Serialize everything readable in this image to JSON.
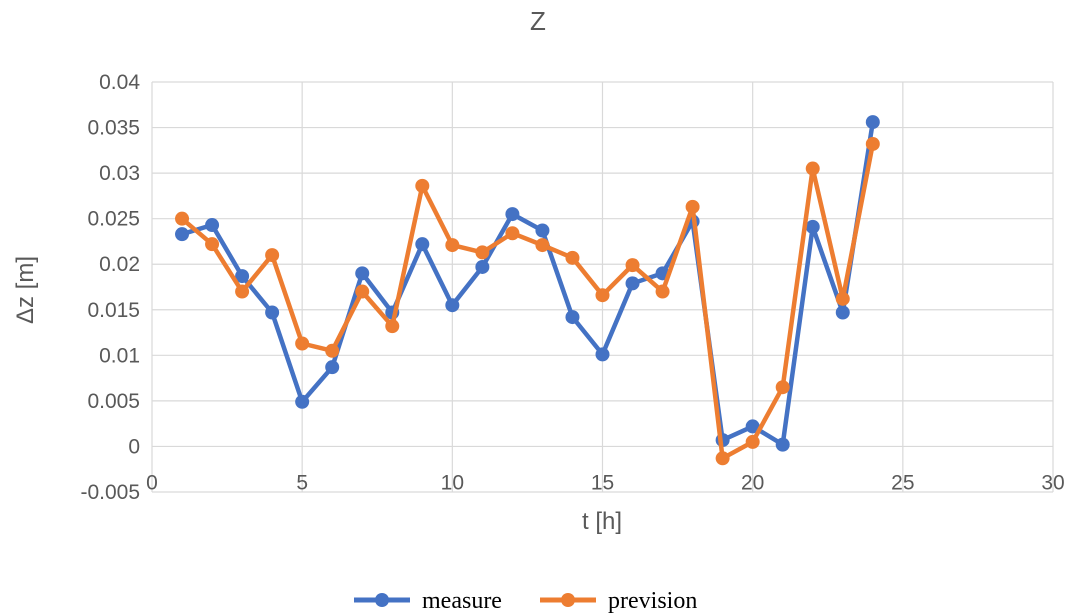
{
  "chart_data": {
    "type": "scatter",
    "title": "Z",
    "xlabel": "t [h]",
    "ylabel": "Δz [m]",
    "xlim": [
      0,
      30
    ],
    "ylim": [
      -0.005,
      0.04
    ],
    "x_ticks": [
      "0",
      "5",
      "10",
      "15",
      "20",
      "25",
      "30"
    ],
    "y_ticks": [
      "-0.005",
      "0",
      "0.005",
      "0.01",
      "0.015",
      "0.02",
      "0.025",
      "0.03",
      "0.035",
      "0.04"
    ],
    "grid": true,
    "legend_position": "bottom",
    "series": [
      {
        "name": "measure",
        "color": "#4472c4",
        "x": [
          1,
          2,
          3,
          4,
          5,
          6,
          7,
          8,
          9,
          10,
          11,
          12,
          13,
          14,
          15,
          16,
          17,
          18,
          19,
          20,
          21,
          22,
          23,
          24
        ],
        "y": [
          0.0233,
          0.0243,
          0.0187,
          0.0147,
          0.0049,
          0.0087,
          0.019,
          0.0147,
          0.0222,
          0.0155,
          0.0197,
          0.0255,
          0.0237,
          0.0142,
          0.0101,
          0.0179,
          0.019,
          0.0247,
          0.0007,
          0.0022,
          0.0002,
          0.0241,
          0.0147,
          0.0356
        ]
      },
      {
        "name": "prevision",
        "color": "#ed7d31",
        "x": [
          1,
          2,
          3,
          4,
          5,
          6,
          7,
          8,
          9,
          10,
          11,
          12,
          13,
          14,
          15,
          16,
          17,
          18,
          19,
          20,
          21,
          22,
          23,
          24
        ],
        "y": [
          0.025,
          0.0222,
          0.017,
          0.021,
          0.0113,
          0.0105,
          0.017,
          0.0132,
          0.0286,
          0.0221,
          0.0213,
          0.0234,
          0.0221,
          0.0207,
          0.0166,
          0.0199,
          0.017,
          0.0263,
          -0.0013,
          0.0005,
          0.0065,
          0.0305,
          0.0162,
          0.0332
        ]
      }
    ]
  }
}
